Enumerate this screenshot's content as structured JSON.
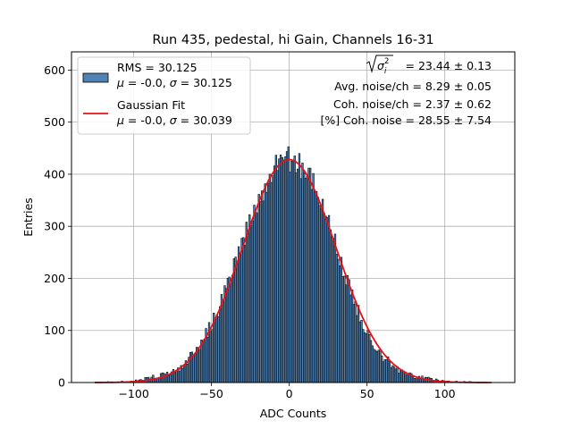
{
  "chart_data": {
    "type": "histogram",
    "title": "Run 435, pedestal, hi Gain, Channels 16-31",
    "xlabel": "ADC Counts",
    "ylabel": "Entries",
    "xlim": [
      -140,
      145
    ],
    "ylim": [
      0,
      635
    ],
    "xticks": [
      -100,
      -50,
      0,
      50,
      100
    ],
    "xtick_labels": [
      "−100",
      "−50",
      "0",
      "50",
      "100"
    ],
    "yticks": [
      0,
      100,
      200,
      300,
      400,
      500,
      600
    ],
    "ytick_labels": [
      "0",
      "100",
      "200",
      "300",
      "400",
      "500",
      "600"
    ],
    "grid": true,
    "legend_position": "upper-left",
    "histogram": {
      "name": "RMS = 30.125",
      "name_line2_mu": "-0.0",
      "name_line2_sigma": "30.125",
      "color": "#4f81b3",
      "edge_color": "#000000",
      "x_range": [
        -125,
        130
      ],
      "bin_width": 1,
      "bins_approx": {
        "x": [
          -100,
          -80,
          -70,
          -60,
          -50,
          -40,
          -30,
          -20,
          -10,
          0,
          10,
          20,
          30,
          40,
          50,
          60,
          70,
          80,
          100
        ],
        "entries": [
          2,
          15,
          28,
          60,
          110,
          180,
          270,
          350,
          410,
          430,
          410,
          350,
          260,
          170,
          95,
          50,
          25,
          12,
          2
        ]
      }
    },
    "fit": {
      "name": "Gaussian Fit",
      "mu_label": "-0.0",
      "sigma_label": "30.039",
      "mu": 0.0,
      "sigma": 30.039,
      "amplitude": 428,
      "x_range": [
        -125,
        130
      ],
      "color": "#e8101a"
    },
    "annotations": {
      "sigma_label": "= 23.44 ± 0.13",
      "avg_noise": "Avg. noise/ch = 8.29 ± 0.05",
      "coh_noise": "Coh. noise/ch = 2.37 ± 0.62",
      "pct_coh_noise": "[%] Coh. noise = 28.55 ± 7.54"
    }
  }
}
